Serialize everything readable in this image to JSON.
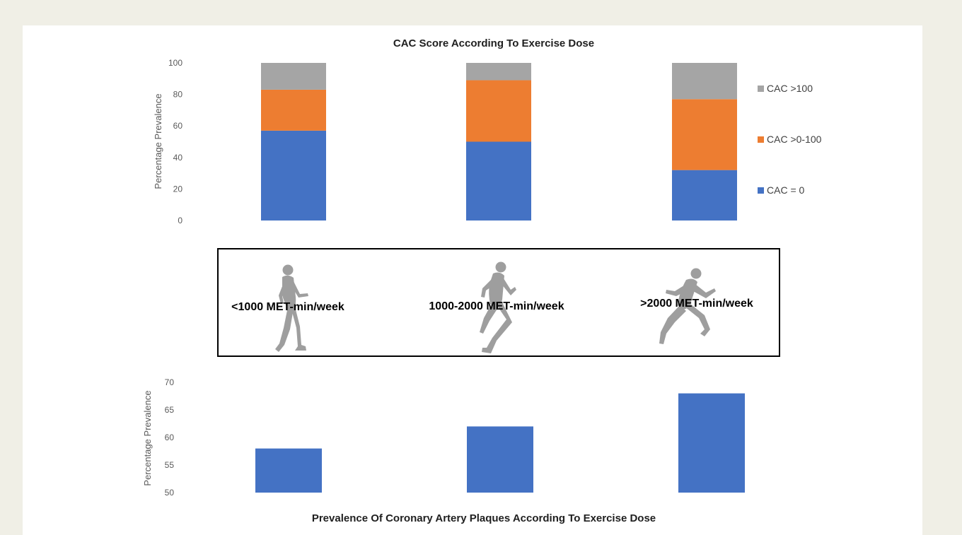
{
  "colors": {
    "background": "#f0efe6",
    "panel": "#ffffff",
    "blue": "#4472c4",
    "orange": "#ed7d31",
    "gray": "#a5a5a5",
    "runner": "#9e9e9e"
  },
  "middle_panel": {
    "labels": [
      "<1000 MET-min/week",
      "1000-2000 MET-min/week",
      ">2000 MET-min/week"
    ],
    "icons": [
      "walking-person-icon",
      "jogging-person-icon",
      "sprinting-person-icon"
    ]
  },
  "chart_data": [
    {
      "type": "bar",
      "stacked": true,
      "title": "CAC Score According To  Exercise Dose",
      "xlabel": "",
      "ylabel": "Percentage Prevalence",
      "ylim": [
        0,
        100
      ],
      "yticks": [
        0,
        20,
        40,
        60,
        80,
        100
      ],
      "categories": [
        "<1000 MET-min/week",
        "1000-2000 MET-min/week",
        ">2000 MET-min/week"
      ],
      "grid": false,
      "legend_position": "right",
      "legend": [
        "CAC >100",
        "CAC >0-100",
        "CAC = 0"
      ],
      "series": [
        {
          "name": "CAC = 0",
          "color": "#4472c4",
          "values": [
            57,
            50,
            32
          ]
        },
        {
          "name": "CAC >0-100",
          "color": "#ed7d31",
          "values": [
            26,
            39,
            45
          ]
        },
        {
          "name": "CAC >100",
          "color": "#a5a5a5",
          "values": [
            17,
            11,
            23
          ]
        }
      ]
    },
    {
      "type": "bar",
      "title": "Prevalence Of Coronary Artery Plaques According To Exercise Dose",
      "xlabel": "",
      "ylabel": "Percentage Prevalence",
      "ylim": [
        50,
        70
      ],
      "yticks": [
        50,
        55,
        60,
        65,
        70
      ],
      "categories": [
        "<1000 MET-min/week",
        "1000-2000 MET-min/week",
        ">2000 MET-min/week"
      ],
      "grid": false,
      "color": "#4472c4",
      "values": [
        58,
        62,
        68
      ]
    }
  ]
}
